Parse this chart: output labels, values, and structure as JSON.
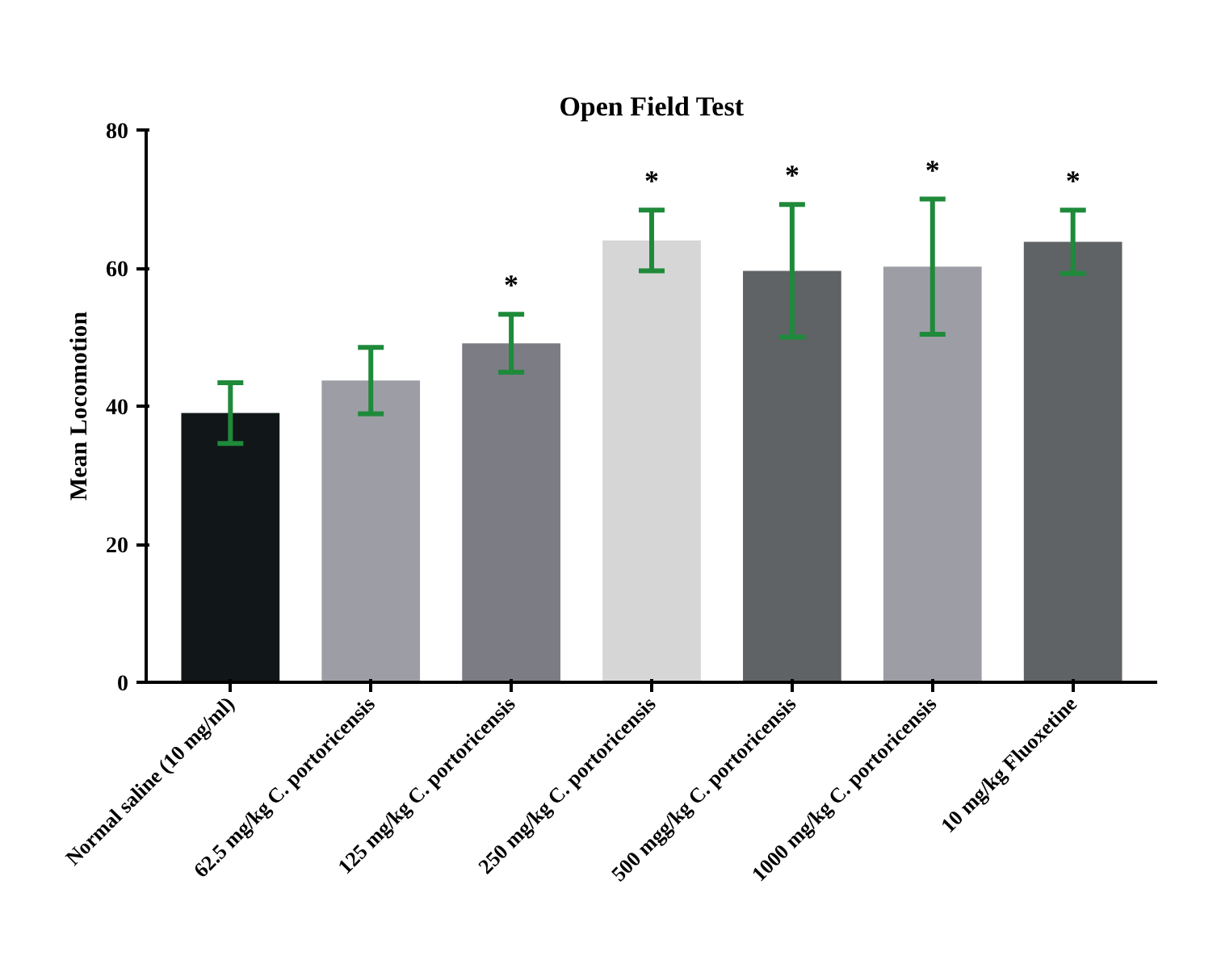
{
  "chart_data": {
    "type": "bar",
    "title": "Open Field Test",
    "ylabel": "Mean Locomotion",
    "categories": [
      "Normal saline (10 mg/ml)",
      "62.5 mg/kg C. portoricensis",
      "125 mg/kg C. portoricensis",
      "250 mg/kg C. portoricensis",
      "500 mgg/kg C. portoricensis",
      "1000 mg/kg C. portoricensis",
      "10 mg/kg Fluoxetine"
    ],
    "values": [
      39.0,
      43.7,
      49.1,
      64.0,
      59.6,
      60.2,
      63.8
    ],
    "errors": [
      4.4,
      4.8,
      4.2,
      4.4,
      9.6,
      9.8,
      4.6
    ],
    "colors": [
      "#111618",
      "#9d9ea5",
      "#7b7c84",
      "#d6d6d6",
      "#5f6366",
      "#9d9ea5",
      "#5f6366"
    ],
    "annotations": [
      {
        "text": "*",
        "x": "125 mg/kg C. portoricensis",
        "y": 53.3
      },
      {
        "text": "*",
        "x": "250 mg/kg C. portoricensis",
        "y": 68.4
      },
      {
        "text": "*",
        "x": "500 mgg/kg C. portoricensis",
        "y": 69.2
      },
      {
        "text": "*",
        "x": "1000 mg/kg C. portoricensis",
        "y": 70.0
      },
      {
        "text": "*",
        "x": "10 mg/kg Fluoxetine",
        "y": 68.4
      }
    ],
    "ylim": [
      0,
      80
    ],
    "yticks": [
      0,
      20,
      40,
      60,
      80
    ],
    "grid": false
  }
}
